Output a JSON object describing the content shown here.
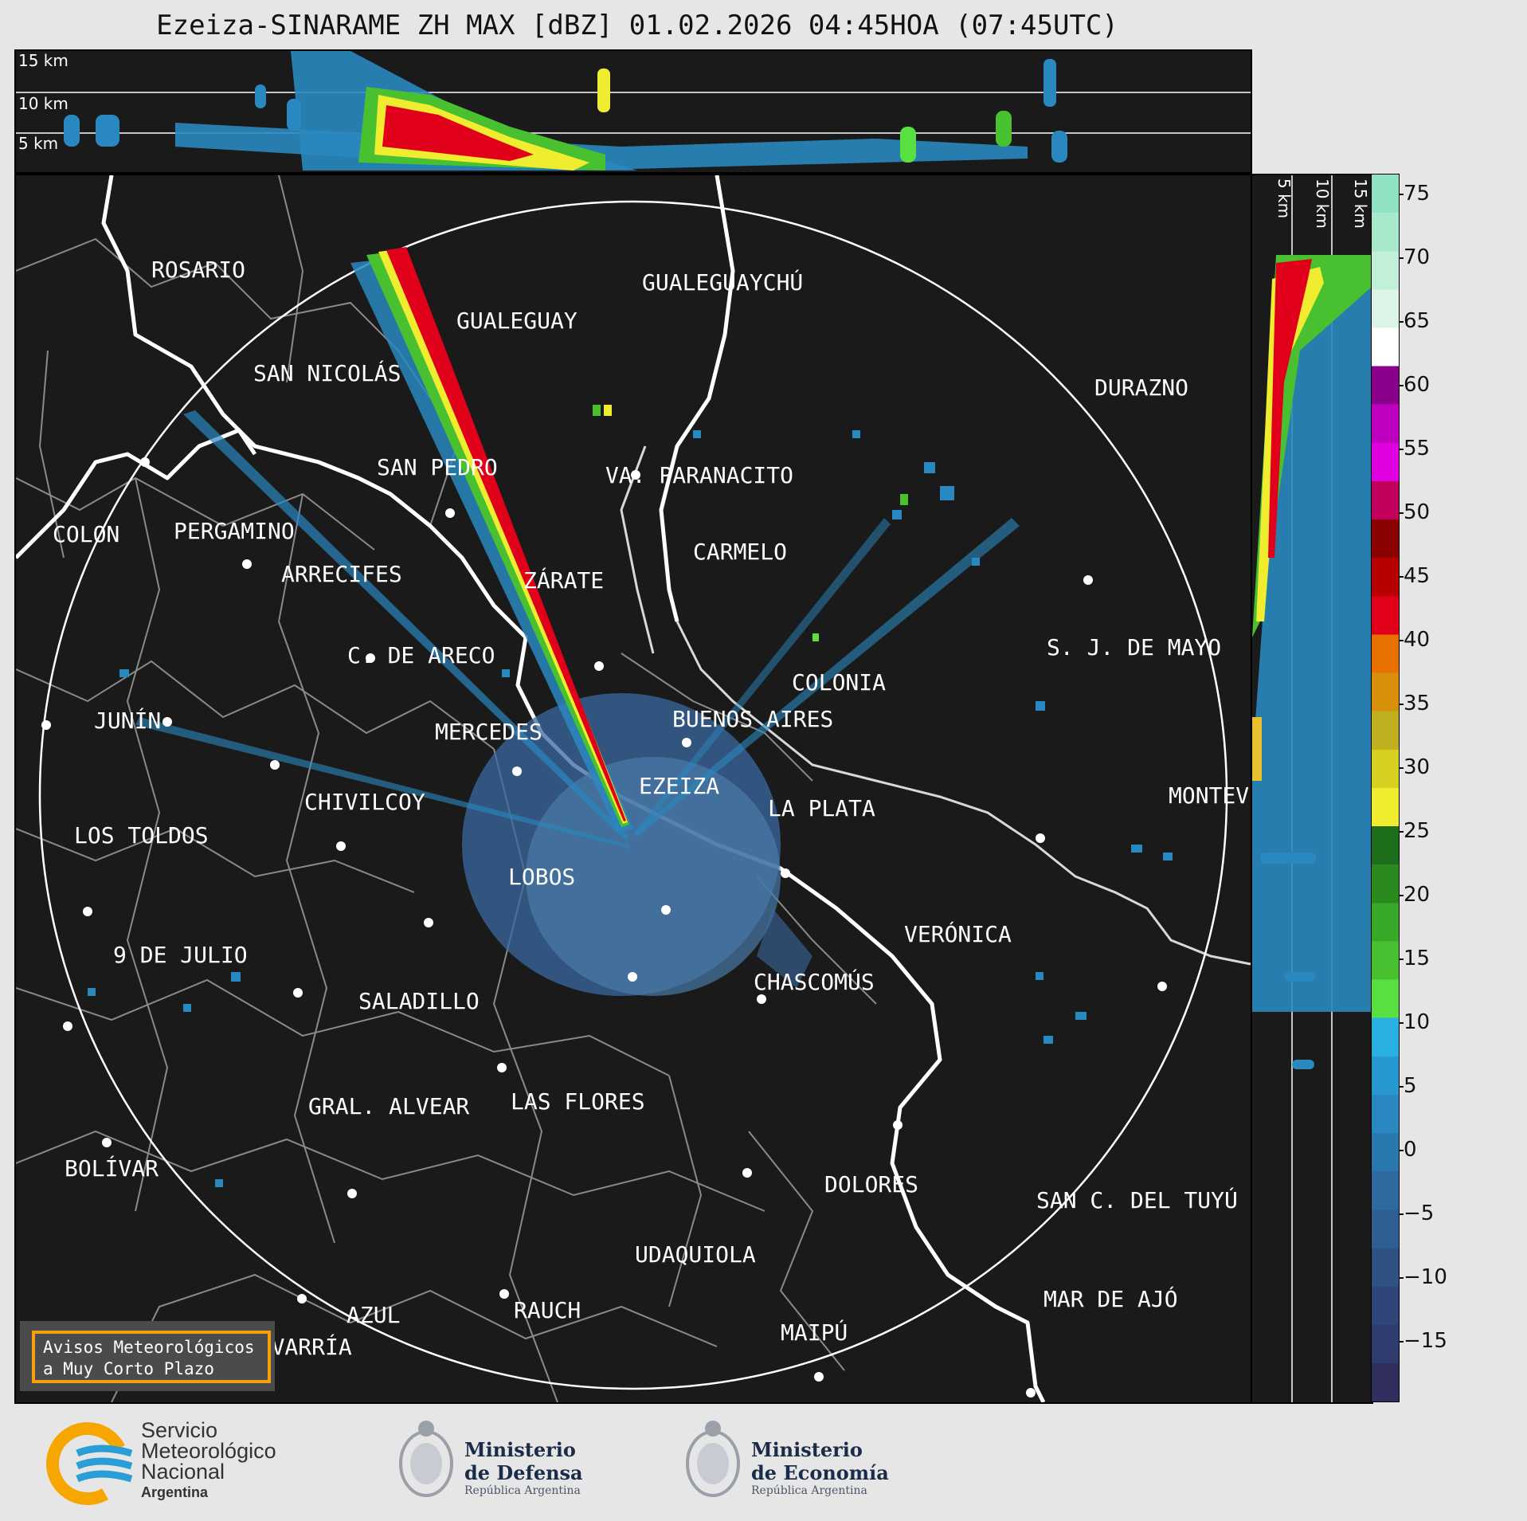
{
  "title": "Ezeiza-SINARAME ZH MAX [dBZ] 01.02.2026 04:45HOA (07:45UTC)",
  "height_labels": {
    "h15": "15 km",
    "h10": "10 km",
    "h5": "5 km"
  },
  "side_labels": {
    "v5": "5 km",
    "v10": "10 km",
    "v15": "15 km"
  },
  "colorbar": {
    "ticks": [
      "75",
      "70",
      "65",
      "60",
      "55",
      "50",
      "45",
      "40",
      "35",
      "30",
      "25",
      "20",
      "15",
      "10",
      "5",
      "0",
      "−5",
      "−10",
      "−15"
    ],
    "colors_high_to_low": [
      "#8fe3c2",
      "#a8e9cc",
      "#c2efd7",
      "#dcf5e6",
      "#ffffff",
      "#8b008b",
      "#c000c0",
      "#e000e0",
      "#c0005a",
      "#8b0000",
      "#b80000",
      "#e0001a",
      "#e87000",
      "#d8900a",
      "#c0b020",
      "#d8d020",
      "#f0ec30",
      "#1e6e1e",
      "#2a8a1e",
      "#38a828",
      "#48c030",
      "#58e040",
      "#28b0e0",
      "#2898d0",
      "#2a88c0",
      "#2a78b0",
      "#2e6aa0",
      "#2f5e92",
      "#305283",
      "#30467a",
      "#303c6e",
      "#302f60"
    ]
  },
  "cities": [
    {
      "name": "ROSARIO"
    },
    {
      "name": "GUALEGUAYCHÚ"
    },
    {
      "name": "GUALEGUAY"
    },
    {
      "name": "SAN NICOLÁS"
    },
    {
      "name": "DURAZNO"
    },
    {
      "name": "SAN PEDRO"
    },
    {
      "name": "VA. PARANACITO"
    },
    {
      "name": "COLON"
    },
    {
      "name": "PERGAMINO"
    },
    {
      "name": "CARMELO"
    },
    {
      "name": "ARRECIFES"
    },
    {
      "name": "ZÁRATE"
    },
    {
      "name": "C. DE ARECO"
    },
    {
      "name": "S. J. DE MAYO"
    },
    {
      "name": "COLONIA"
    },
    {
      "name": "JUNÍN"
    },
    {
      "name": "BUENOS AIRES"
    },
    {
      "name": "MERCEDES"
    },
    {
      "name": "EZEIZA"
    },
    {
      "name": "MONTEVIDEO"
    },
    {
      "name": "CHIVILCOY"
    },
    {
      "name": "LA PLATA"
    },
    {
      "name": "LOS TOLDOS"
    },
    {
      "name": "LOBOS"
    },
    {
      "name": "VERÓNICA"
    },
    {
      "name": "9 DE JULIO"
    },
    {
      "name": "CHASCOMÚS"
    },
    {
      "name": "SALADILLO"
    },
    {
      "name": "GRAL. ALVEAR"
    },
    {
      "name": "LAS FLORES"
    },
    {
      "name": "BOLÍVAR"
    },
    {
      "name": "DOLORES"
    },
    {
      "name": "SAN C. DEL TUYÚ"
    },
    {
      "name": "UDAQUIOLA"
    },
    {
      "name": "AZUL"
    },
    {
      "name": "RAUCH"
    },
    {
      "name": "OLAVARRÍA"
    },
    {
      "name": "MAIPÚ"
    },
    {
      "name": "MAR DE AJÓ"
    }
  ],
  "avisos": {
    "line1": "Avisos Meteorológicos",
    "line2": "a Muy Corto Plazo"
  },
  "logos": {
    "smn": {
      "line1": "Servicio",
      "line2": "Meteorológico",
      "line3": "Nacional",
      "line4": "Argentina"
    },
    "defensa": {
      "line1": "Ministerio",
      "line2": "de Defensa",
      "line3": "República Argentina"
    },
    "economia": {
      "line1": "Ministerio",
      "line2": "de Economía",
      "line3": "República Argentina"
    }
  },
  "colors": {
    "coast": "#ffffff",
    "borders": "#8a8a8a",
    "range_ring": "#ffffff",
    "background": "#1a1a1a",
    "avisos_border": "#f5a00a",
    "smn_blue": "#2a9fd6",
    "smn_orange": "#f7a600"
  }
}
